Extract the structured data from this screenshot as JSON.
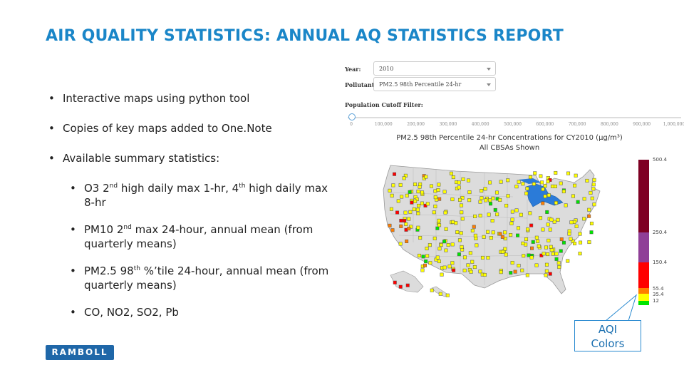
{
  "slide": {
    "title": "AIR QUALITY STATISTICS: ANNUAL AQ STATISTICS REPORT",
    "bullets": [
      "Interactive maps using python tool",
      "Copies of key maps added to One.Note",
      "Available summary statistics:"
    ],
    "sub": [
      {
        "p1": "O3 2",
        "s1": "nd",
        "p2": " high daily max 1-hr, 4",
        "s2": "th",
        "p3": " high daily max 8-hr"
      },
      {
        "p1": "PM10 2",
        "s1": "nd",
        "p2": " max 24-hour, annual mean (from quarterly means)"
      },
      {
        "p1": "PM2.5 98",
        "s1": "th",
        "p2": " %’tile 24-hour, annual mean (from quarterly means)"
      },
      {
        "p1": "CO, NO2, SO2, Pb"
      }
    ]
  },
  "controls": {
    "year_label": "Year:",
    "year_value": "2010",
    "pollutant_label": "Pollutant:",
    "pollutant_value": "PM2.5 98th Percentile 24-hr",
    "population_label": "Population Cutoff Filter:",
    "ticks": [
      "0",
      "100,000",
      "200,000",
      "300,000",
      "400,000",
      "500,000",
      "600,000",
      "700,000",
      "800,000",
      "900,000",
      "1,000,000"
    ]
  },
  "map": {
    "title_line1": "PM2.5 98th Percentile 24-hr Concentrations for CY2010 (μg/m³)",
    "title_line2": "All CBSAs Shown",
    "legend": {
      "labels": [
        "500.4",
        "250.4",
        "150.4",
        "55.4",
        "35.4",
        "12"
      ],
      "colors": {
        "hazardous": "#7e0023",
        "very_unhealthy": "#8f3f97",
        "unhealthy": "#ff0000",
        "usg": "#ff7e00",
        "moderate": "#ffff00",
        "good": "#00e400"
      }
    }
  },
  "callout": {
    "line1": "AQI",
    "line2": "Colors"
  },
  "logo": "RAMBOLL"
}
